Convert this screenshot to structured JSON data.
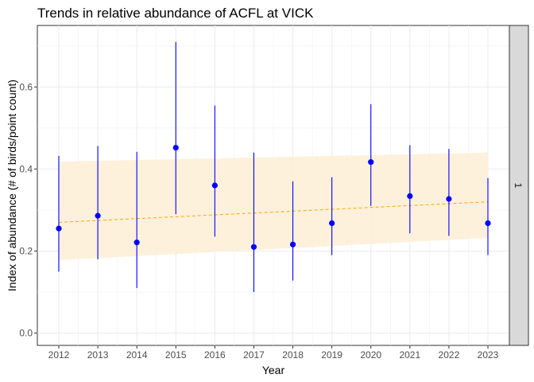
{
  "chart_data": {
    "type": "scatter",
    "title": "Trends in relative abundance of ACFL at VICK",
    "xlabel": "Year",
    "ylabel": "Index of abundance (# of birds/point count)",
    "facet_label": "1",
    "x": [
      2012,
      2013,
      2014,
      2015,
      2016,
      2017,
      2018,
      2019,
      2020,
      2021,
      2022,
      2023
    ],
    "series": [
      {
        "values": [
          0.255,
          0.286,
          0.221,
          0.452,
          0.36,
          0.21,
          0.216,
          0.268,
          0.417,
          0.334,
          0.327,
          0.268
        ],
        "lower": [
          0.15,
          0.18,
          0.11,
          0.29,
          0.235,
          0.1,
          0.128,
          0.19,
          0.31,
          0.243,
          0.237,
          0.19
        ],
        "upper": [
          0.432,
          0.456,
          0.442,
          0.71,
          0.555,
          0.44,
          0.37,
          0.38,
          0.558,
          0.458,
          0.449,
          0.378
        ],
        "color": "#0000ff"
      }
    ],
    "trend": {
      "x": [
        2012,
        2023
      ],
      "y": [
        0.27,
        0.32
      ],
      "band_lower": [
        0.178,
        0.232
      ],
      "band_upper": [
        0.418,
        0.44
      ],
      "line_color": "#ffa500",
      "band_color": "#fdf0d8"
    },
    "xticks": [
      "2012",
      "2013",
      "2014",
      "2015",
      "2016",
      "2017",
      "2018",
      "2019",
      "2020",
      "2021",
      "2022",
      "2023"
    ],
    "yticks": [
      "0.0",
      "0.2",
      "0.4",
      "0.6"
    ],
    "ylim": [
      -0.03,
      0.75
    ],
    "xlim": [
      2011.45,
      2023.55
    ],
    "grid": true
  }
}
